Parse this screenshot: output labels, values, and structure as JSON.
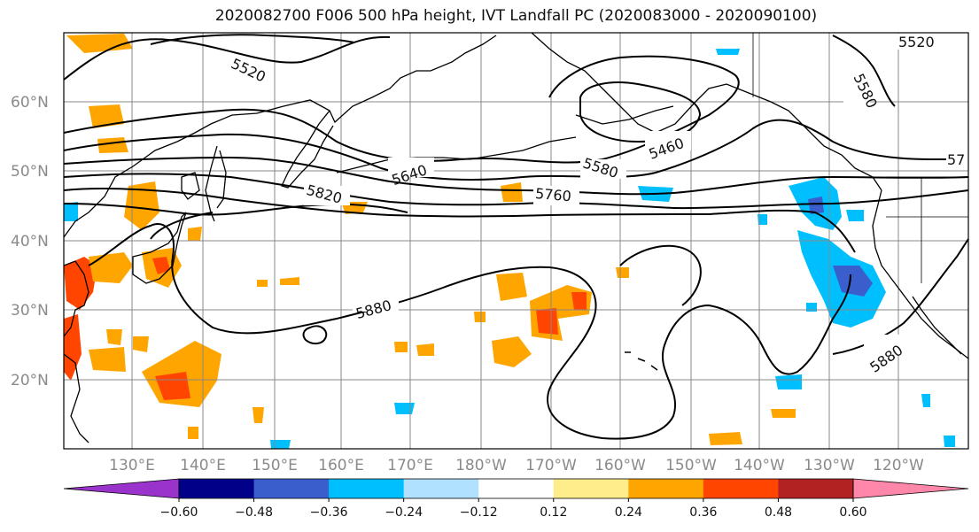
{
  "title": "2020082700 F006 500 hPa height, IVT Landfall PC (2020083000 - 2020090100)",
  "map": {
    "lat_labels": [
      "60°N",
      "50°N",
      "40°N",
      "30°N",
      "20°N"
    ],
    "lon_labels": [
      "130°E",
      "140°E",
      "150°E",
      "160°E",
      "170°E",
      "180°W",
      "170°W",
      "160°W",
      "150°W",
      "140°W",
      "130°W",
      "120°W"
    ],
    "contour_labels": [
      "5520",
      "5580",
      "5460",
      "5640",
      "5580",
      "5820",
      "5760",
      "57",
      "5880",
      "5880",
      "5520"
    ]
  },
  "colorbar": {
    "colors": [
      "#9933cc",
      "#000088",
      "#3a5fcd",
      "#00bfff",
      "#b0e2ff",
      "#ffffff",
      "#ffec8b",
      "#ffa500",
      "#ff4500",
      "#b22222",
      "#ff88aa"
    ],
    "ticks": [
      "−0.60",
      "−0.48",
      "−0.36",
      "−0.24",
      "−0.12",
      "0.12",
      "0.24",
      "0.36",
      "0.48",
      "0.60"
    ]
  },
  "colors": {
    "contour": "#000000",
    "grid": "#888888",
    "coast": "#000000"
  }
}
